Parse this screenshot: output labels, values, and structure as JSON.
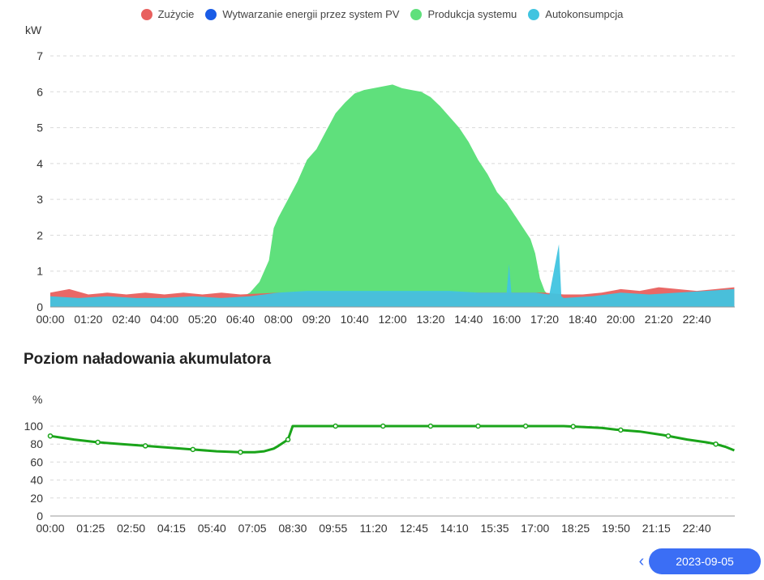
{
  "chart_data": [
    {
      "type": "area",
      "unit_label": "kW",
      "legend": [
        {
          "name": "Zużycie",
          "color": "#e8605e"
        },
        {
          "name": "Wytwarzanie energii przez system PV",
          "color": "#1a5ce6"
        },
        {
          "name": "Produkcja systemu",
          "color": "#5fe07c"
        },
        {
          "name": "Autokonsumpcja",
          "color": "#40c4e0"
        }
      ],
      "x_ticks": [
        "00:00",
        "01:20",
        "02:40",
        "04:00",
        "05:20",
        "06:40",
        "08:00",
        "09:20",
        "10:40",
        "12:00",
        "13:20",
        "14:40",
        "16:00",
        "17:20",
        "18:40",
        "20:00",
        "21:20",
        "22:40"
      ],
      "y_ticks": [
        0,
        1,
        2,
        3,
        4,
        5,
        6,
        7
      ],
      "ylim": [
        0,
        7
      ],
      "xlim_hours": [
        0,
        24
      ],
      "grid": true,
      "series": [
        {
          "name": "Produkcja systemu",
          "color": "#5fe07c",
          "x": [
            "06:40",
            "07:00",
            "07:20",
            "07:40",
            "07:50",
            "08:00",
            "08:20",
            "08:40",
            "09:00",
            "09:20",
            "09:40",
            "10:00",
            "10:20",
            "10:40",
            "11:00",
            "11:20",
            "11:40",
            "12:00",
            "12:20",
            "12:40",
            "13:00",
            "13:20",
            "13:40",
            "14:00",
            "14:20",
            "14:40",
            "15:00",
            "15:20",
            "15:40",
            "16:00",
            "16:20",
            "16:40",
            "16:50",
            "17:00",
            "17:10",
            "17:20",
            "17:30"
          ],
          "values": [
            0.25,
            0.4,
            0.7,
            1.3,
            2.2,
            2.5,
            3.0,
            3.5,
            4.1,
            4.4,
            4.9,
            5.4,
            5.7,
            5.95,
            6.05,
            6.1,
            6.15,
            6.2,
            6.1,
            6.05,
            6.0,
            5.85,
            5.6,
            5.3,
            5.0,
            4.6,
            4.1,
            3.7,
            3.2,
            2.9,
            2.5,
            2.1,
            1.9,
            1.5,
            0.8,
            0.45,
            0.3
          ]
        },
        {
          "name": "Zużycie",
          "color": "#e8605e",
          "x": [
            "00:00",
            "00:40",
            "01:20",
            "02:00",
            "02:40",
            "03:20",
            "04:00",
            "04:40",
            "05:20",
            "06:00",
            "06:40",
            "08:00",
            "12:00",
            "16:00",
            "17:20",
            "18:00",
            "18:40",
            "19:20",
            "20:00",
            "20:40",
            "21:20",
            "22:00",
            "22:40",
            "23:20",
            "23:59"
          ],
          "values": [
            0.4,
            0.5,
            0.35,
            0.4,
            0.35,
            0.4,
            0.35,
            0.4,
            0.35,
            0.4,
            0.35,
            0.4,
            0.4,
            0.4,
            0.4,
            0.35,
            0.35,
            0.4,
            0.5,
            0.45,
            0.55,
            0.5,
            0.45,
            0.5,
            0.55
          ]
        },
        {
          "name": "Autokonsumpcja",
          "color": "#40c4e0",
          "x": [
            "00:00",
            "01:00",
            "02:00",
            "03:00",
            "04:00",
            "05:00",
            "06:00",
            "07:00",
            "08:00",
            "09:00",
            "10:00",
            "11:00",
            "12:00",
            "13:00",
            "14:00",
            "15:00",
            "16:00",
            "16:05",
            "16:10",
            "17:00",
            "17:30",
            "17:50",
            "17:55",
            "18:00",
            "19:00",
            "20:00",
            "21:00",
            "22:00",
            "23:00",
            "23:59"
          ],
          "values": [
            0.3,
            0.25,
            0.3,
            0.25,
            0.25,
            0.3,
            0.25,
            0.3,
            0.4,
            0.45,
            0.45,
            0.45,
            0.45,
            0.45,
            0.45,
            0.4,
            0.4,
            1.2,
            0.4,
            0.4,
            0.35,
            1.75,
            0.3,
            0.25,
            0.3,
            0.4,
            0.35,
            0.4,
            0.45,
            0.5
          ]
        }
      ]
    },
    {
      "type": "line",
      "title": "Poziom naładowania akumulatora",
      "unit_label": "%",
      "x_ticks": [
        "00:00",
        "01:25",
        "02:50",
        "04:15",
        "05:40",
        "07:05",
        "08:30",
        "09:55",
        "11:20",
        "12:45",
        "14:10",
        "15:35",
        "17:00",
        "18:25",
        "19:50",
        "21:15",
        "22:40"
      ],
      "y_ticks": [
        0,
        20,
        40,
        60,
        80,
        100
      ],
      "ylim": [
        0,
        100
      ],
      "xlim_hours": [
        0,
        24
      ],
      "grid": true,
      "series": [
        {
          "name": "",
          "color": "#1aa41a",
          "x": [
            "00:00",
            "00:50",
            "01:40",
            "02:30",
            "03:20",
            "04:10",
            "05:00",
            "05:50",
            "06:40",
            "07:10",
            "07:30",
            "07:50",
            "08:00",
            "08:20",
            "08:30",
            "09:50",
            "11:20",
            "12:40",
            "14:00",
            "15:30",
            "17:00",
            "18:00",
            "18:40",
            "19:20",
            "19:50",
            "20:40",
            "21:30",
            "22:20",
            "23:00",
            "23:20",
            "23:40",
            "23:59"
          ],
          "values": [
            89,
            85,
            82,
            80,
            78,
            76,
            74,
            72,
            71,
            71,
            72,
            75,
            78,
            85,
            100,
            100,
            100,
            100,
            100,
            100,
            100,
            100,
            99,
            98,
            96,
            94,
            90,
            85,
            82,
            80,
            77,
            73
          ]
        }
      ]
    }
  ],
  "controls": {
    "prev_label": "‹",
    "date": "2023-09-05"
  }
}
